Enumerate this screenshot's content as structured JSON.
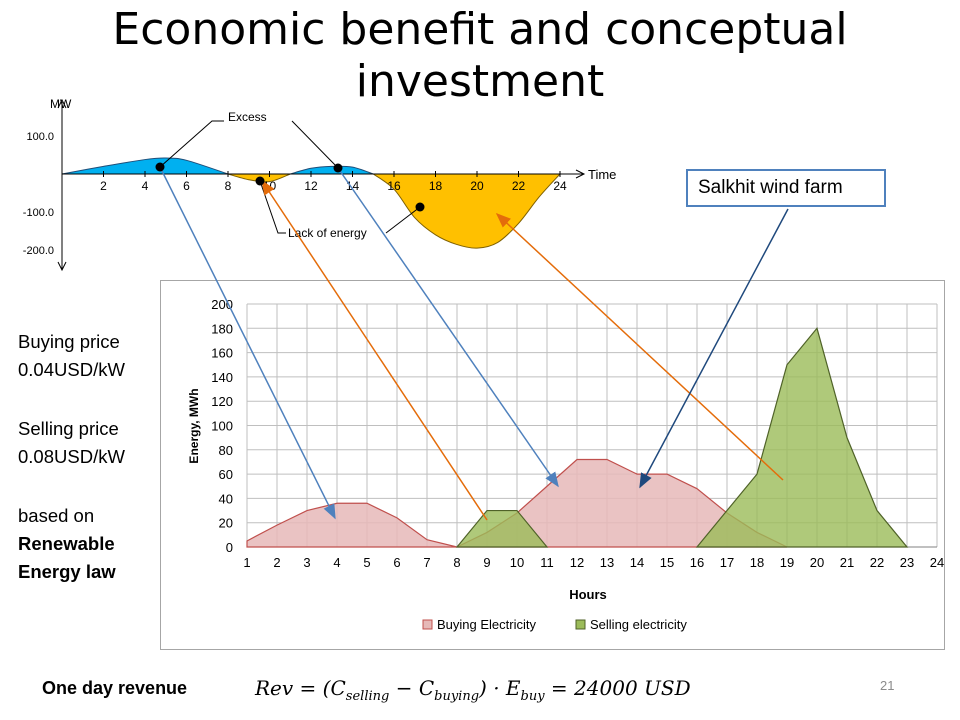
{
  "slide": {
    "title_line1": "Economic benefit and conceptual",
    "title_line2": "investment",
    "page_number": "21"
  },
  "sidebar": {
    "buying_label": "Buying price",
    "buying_value": "0.04USD/kW",
    "selling_label": "Selling price",
    "selling_value": "0.08USD/kW",
    "based_on": "based on",
    "law_line1": "Renewable",
    "law_line2": "Energy law"
  },
  "callout": {
    "label": "Salkhit wind farm"
  },
  "revenue": {
    "label": "One day revenue",
    "rev": "Rev",
    "c": "C",
    "selling_sub": "selling",
    "buying_sub": "buying",
    "e": "E",
    "buy_sub": "buy",
    "result": "24000 USD"
  },
  "colors": {
    "buying_fill": "#e6b9b8",
    "buying_line": "#c0504d",
    "selling_fill": "#9bbb59",
    "selling_line": "#4f6228",
    "excess_fill": "#00b0f0",
    "lack_fill": "#ffc000",
    "arrow_blue": "#4f81bd",
    "arrow_orange": "#e46c0a",
    "arrow_navy": "#1f497d"
  },
  "chart_data": [
    {
      "type": "area",
      "title": "",
      "xlabel": "Time",
      "ylabel": "MW",
      "x_ticks": [
        "2",
        "4",
        "6",
        "8",
        "10",
        "12",
        "14",
        "16",
        "18",
        "20",
        "22",
        "24"
      ],
      "y_ticks": [
        "100.0",
        "-100.0",
        "-200.0"
      ],
      "xlim": [
        0,
        24
      ],
      "ylim": [
        -200,
        100
      ],
      "series": [
        {
          "name": "Excess",
          "x": [
            0,
            2,
            4,
            5,
            6,
            8
          ],
          "values": [
            0,
            20,
            38,
            42,
            36,
            0
          ]
        },
        {
          "name": "Excess",
          "x": [
            11,
            12,
            13,
            14,
            15
          ],
          "values": [
            0,
            15,
            20,
            18,
            0
          ]
        },
        {
          "name": "Lack of energy",
          "x": [
            8,
            9,
            10,
            11
          ],
          "values": [
            0,
            -15,
            -20,
            0
          ]
        },
        {
          "name": "Lack of energy",
          "x": [
            15,
            16,
            17,
            18,
            19,
            20,
            21,
            22,
            23,
            24
          ],
          "values": [
            0,
            -40,
            -115,
            -160,
            -185,
            -195,
            -180,
            -130,
            -60,
            0
          ]
        }
      ],
      "annotations": [
        "Excess",
        "Lack of energy"
      ]
    },
    {
      "type": "area",
      "title": "",
      "xlabel": "Hours",
      "ylabel": "Energy, MWh",
      "x": [
        1,
        2,
        3,
        4,
        5,
        6,
        7,
        8,
        9,
        10,
        11,
        12,
        13,
        14,
        15,
        16,
        17,
        18,
        19,
        20,
        21,
        22,
        23,
        24
      ],
      "ylim": [
        0,
        200
      ],
      "y_ticks": [
        0,
        20,
        40,
        60,
        80,
        100,
        120,
        140,
        160,
        180,
        200
      ],
      "grid": true,
      "legend": "bottom",
      "series": [
        {
          "name": "Buying Electricity",
          "x": [
            1,
            2,
            3,
            4,
            5,
            6,
            7,
            8,
            9,
            10,
            11,
            12,
            13,
            14,
            15,
            16,
            17,
            18,
            19
          ],
          "values": [
            5,
            18,
            30,
            36,
            36,
            24,
            6,
            0,
            12,
            28,
            50,
            72,
            72,
            60,
            60,
            48,
            28,
            12,
            0
          ]
        },
        {
          "name": "Selling electricity",
          "x": [
            8,
            9,
            10,
            11
          ],
          "values": [
            0,
            30,
            30,
            0
          ]
        },
        {
          "name": "Selling electricity",
          "x": [
            16,
            17,
            18,
            19,
            20,
            21,
            22,
            23
          ],
          "values": [
            0,
            30,
            60,
            150,
            180,
            90,
            30,
            0
          ]
        }
      ]
    }
  ]
}
